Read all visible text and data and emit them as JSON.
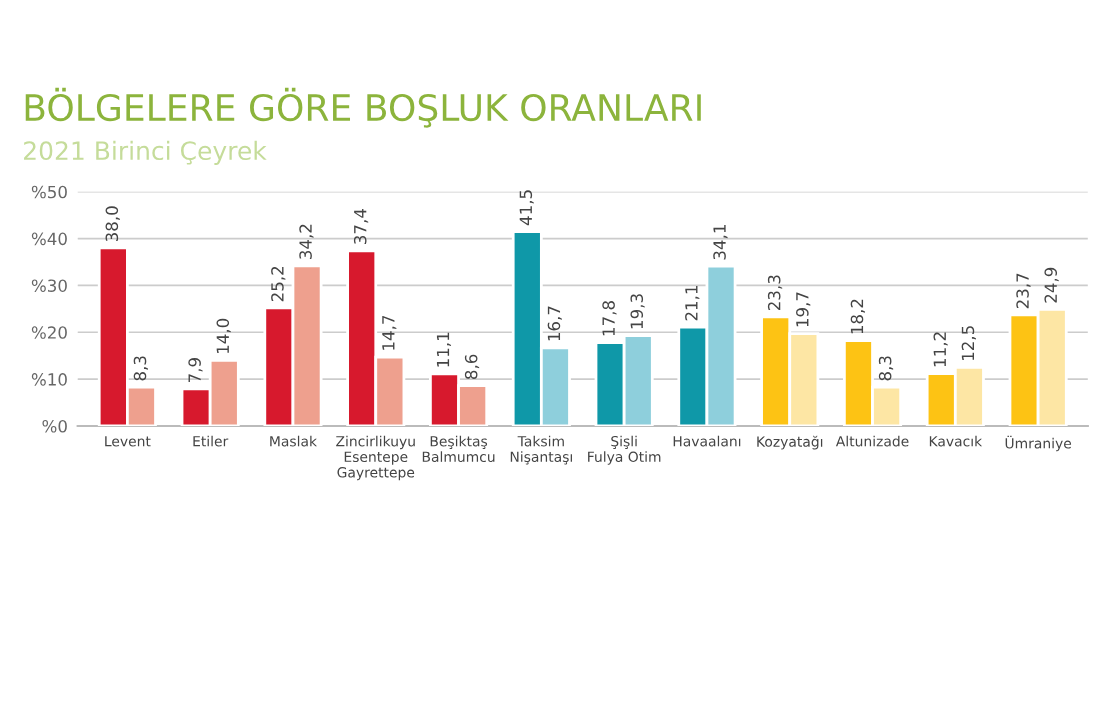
{
  "chart_data": {
    "type": "bar",
    "title": "BÖLGELERE GÖRE BOŞLUK ORANLARI",
    "subtitle": "2021 Birinci Çeyrek",
    "categories": [
      "Levent",
      "Etiler",
      "Maslak",
      "Zincirlikuyu\nEsentepe\nGayrettepe",
      "Beşiktaş\nBalmumcu",
      "Taksim\nNişantaşı",
      "Şişli\nFulya Otim",
      "Havaalanı",
      "Kozyatağı",
      "Altunizade",
      "Kavacık",
      "Ümraniye"
    ],
    "series": [
      {
        "colors": [
          "#d7192d",
          "#d7192d",
          "#d7192d",
          "#d7192d",
          "#d7192d",
          "#0f98a8",
          "#0f98a8",
          "#0f98a8",
          "#fdc314",
          "#fdc314",
          "#fdc314",
          "#fdc314"
        ],
        "values": [
          38.0,
          7.9,
          25.2,
          37.4,
          11.1,
          41.5,
          17.8,
          21.1,
          23.3,
          18.2,
          11.2,
          23.7
        ],
        "value_labels": [
          "38,0",
          "7,9",
          "25,2",
          "37,4",
          "11,1",
          "41,5",
          "17,8",
          "21,1",
          "23,3",
          "18,2",
          "11,2",
          "23,7"
        ]
      },
      {
        "colors": [
          "#eea08e",
          "#eea08e",
          "#eea08e",
          "#eea08e",
          "#eea08e",
          "#8ecfdc",
          "#8ecfdc",
          "#8ecfdc",
          "#fde6a4",
          "#fde6a4",
          "#fde6a4",
          "#fde6a4"
        ],
        "values": [
          8.3,
          14.0,
          34.2,
          14.7,
          8.6,
          16.7,
          19.3,
          34.1,
          19.7,
          8.3,
          12.5,
          24.9
        ],
        "value_labels": [
          "8,3",
          "14,0",
          "34,2",
          "14,7",
          "8,6",
          "16,7",
          "19,3",
          "34,1",
          "19,7",
          "8,3",
          "12,5",
          "24,9"
        ]
      }
    ],
    "ylim": [
      0,
      50
    ],
    "yticks": [
      {
        "value": 0,
        "label": "%0"
      },
      {
        "value": 10,
        "label": "%10"
      },
      {
        "value": 20,
        "label": "%20"
      },
      {
        "value": 30,
        "label": "%30"
      },
      {
        "value": 40,
        "label": "%40"
      },
      {
        "value": 50,
        "label": "%50"
      }
    ],
    "grid": "y",
    "legend": false
  }
}
